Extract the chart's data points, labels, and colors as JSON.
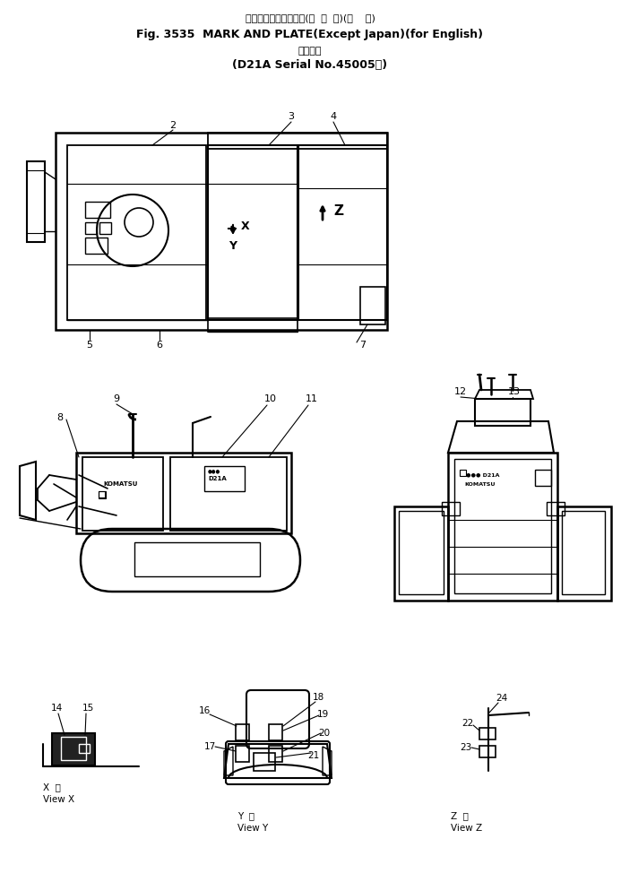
{
  "bg_color": "#ffffff",
  "title_line1": "マークおよびプレート(海  外  向)(英    語)",
  "title_line2": "Fig. 3535  MARK AND PLATE(Except Japan)(for English)",
  "title_line3": "適用号機",
  "title_line4": "(D21A Serial No.45005～)",
  "figsize": [
    6.93,
    9.84
  ],
  "dpi": 100
}
